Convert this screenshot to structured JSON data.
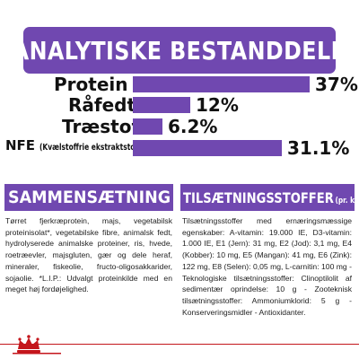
{
  "header": {
    "title": "ANALYTISKE BESTANDDELE"
  },
  "analysis": {
    "rows": [
      {
        "label": "Protein",
        "sublabel": "",
        "value": "37%",
        "percent": 37
      },
      {
        "label": "Råfedt",
        "sublabel": "",
        "value": "12%",
        "percent": 12
      },
      {
        "label": "Træstof",
        "sublabel": "",
        "value": "6.2%",
        "percent": 6.2
      },
      {
        "label": "NFE",
        "sublabel": "(Kvælstoffrie ekstraktstoffer)",
        "value": "31.1%",
        "percent": 31.1
      }
    ]
  },
  "composition": {
    "title": "SAMMENSÆTNING",
    "text": "Tørret fjerkræprotein, majs, vegetabilsk proteinisolat*, vegetabilske fibre, animalsk fedt, hydrolyserede animalske proteiner, ris, hvede, roetræevler, majsgluten, gær og dele heraf, mineraler, fiskeolie, fructo-oligosakkarider, sojaolie. *L.I.P.: Udvalgt proteinkilde med en meget høj fordøjelighed."
  },
  "additives": {
    "title": "TILSÆTNINGSSTOFFER",
    "title_suffix": "(pr. kg)",
    "text": "Tilsætningsstoffer med ernæringsmæssige egenskaber: A-vitamin: 19.000 IE, D3-vitamin: 1.000 IE, E1 (Jern): 31 mg, E2 (Jod): 3,1 mg, E4 (Kobber): 10 mg, E5 (Mangan): 41 mg, E6 (Zink): 122 mg, E8 (Selen): 0,05 mg, L-carnitin: 100 mg - Teknologiske tilsætningsstoffer: Clinoptilolit af sedimentær oprindelse: 10 g - Zooteknisk tilsætningsstoffer: Ammoniumklorid: 5 g - Konserveringsmidler - Antioxidanter."
  },
  "brand": {
    "logo": "crown-logo"
  },
  "colors": {
    "accent": "#7048b0",
    "brand_red": "#c4161c"
  }
}
